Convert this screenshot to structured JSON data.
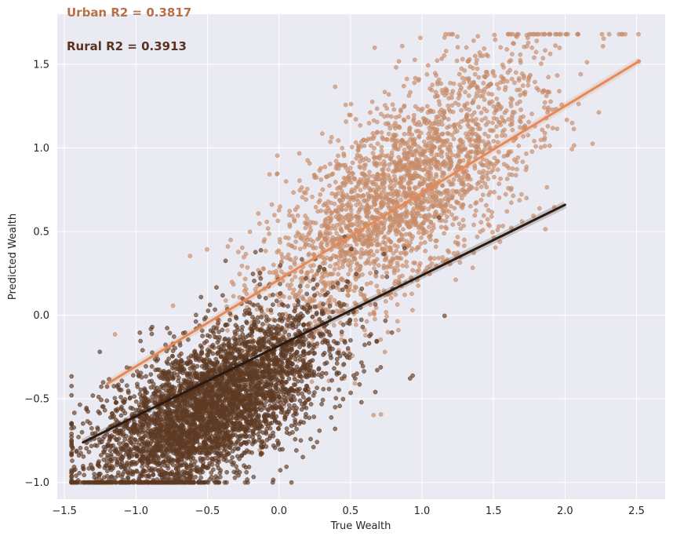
{
  "chart_data": {
    "type": "scatter",
    "xlabel": "True Wealth",
    "ylabel": "Predicted Wealth",
    "xlim": [
      -1.55,
      2.7
    ],
    "ylim": [
      -1.1,
      1.8
    ],
    "x_ticks": [
      -1.5,
      -1.0,
      -0.5,
      0.0,
      0.5,
      1.0,
      1.5,
      2.0,
      2.5
    ],
    "y_ticks": [
      -1.0,
      -0.5,
      0.0,
      0.5,
      1.0,
      1.5
    ],
    "x_tick_labels": [
      "−1.5",
      "−1.0",
      "−0.5",
      "0.0",
      "0.5",
      "1.0",
      "1.5",
      "2.0",
      "2.5"
    ],
    "y_tick_labels": [
      "−1.0",
      "−0.5",
      "0.0",
      "0.5",
      "1.0",
      "1.5"
    ],
    "grid": true,
    "background": "#eaeaf2",
    "annotations": [
      {
        "text": "Urban R2 = 0.3817",
        "color": "#b87048"
      },
      {
        "text": "Rural R2 = 0.3913",
        "color": "#5a3322"
      }
    ],
    "series": [
      {
        "group": "urban",
        "color": "#c68c68",
        "point_count": 2600,
        "distribution": {
          "x_mean": 0.85,
          "x_sd": 0.5,
          "y_intercept": 0.18,
          "y_slope": 0.64,
          "y_sd": 0.3
        },
        "regression": {
          "x": [
            -1.2,
            2.52
          ],
          "y": [
            -0.41,
            1.52
          ],
          "color": "#e28a5a"
        }
      },
      {
        "group": "rural",
        "color": "#5e3a24",
        "point_count": 4200,
        "distribution": {
          "x_mean": -0.5,
          "x_sd": 0.42,
          "y_intercept": -0.35,
          "y_slope": 0.42,
          "y_sd": 0.22
        },
        "regression": {
          "x": [
            -1.37,
            2.0
          ],
          "y": [
            -0.76,
            0.66
          ],
          "color": "#2b1a10"
        }
      }
    ]
  }
}
